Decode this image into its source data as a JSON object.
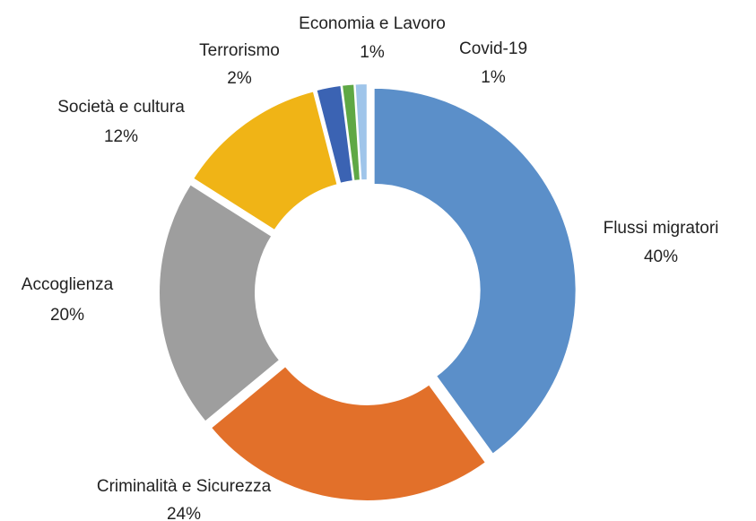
{
  "chart_data": {
    "type": "donut",
    "categories": [
      "Flussi migratori",
      "Criminalità e Sicurezza",
      "Accoglienza",
      "Società e cultura",
      "Terrorismo",
      "Economia e Lavoro",
      "Covid-19"
    ],
    "values": [
      40,
      24,
      20,
      12,
      2,
      1,
      1
    ],
    "value_labels": [
      "40%",
      "24%",
      "20%",
      "12%",
      "2%",
      "1%",
      "1%"
    ],
    "colors": [
      "#5b8fc9",
      "#e2702a",
      "#9e9e9e",
      "#f0b416",
      "#3b63b3",
      "#5fa845",
      "#9fc5ea"
    ]
  }
}
